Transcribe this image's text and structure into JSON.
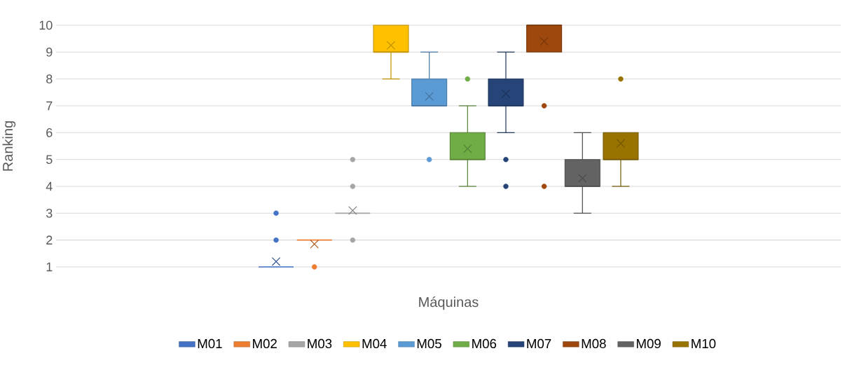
{
  "chart_data": {
    "type": "box",
    "xlabel": "Máquinas",
    "ylabel": "Ranking",
    "categories": [
      null
    ],
    "ylim": [
      1,
      10
    ],
    "yticks": [
      1,
      2,
      3,
      4,
      5,
      6,
      7,
      8,
      9,
      10
    ],
    "grid": "y",
    "legend": "bottom",
    "series": [
      {
        "name": "M01",
        "color": "#4472c4",
        "boxes": [
          {
            "low": 1,
            "q1": 1,
            "median": 1,
            "q3": 1,
            "high": 1,
            "mean": 1.2,
            "outliers": [
              2,
              3
            ]
          }
        ]
      },
      {
        "name": "M02",
        "color": "#ed7d31",
        "boxes": [
          {
            "low": 2,
            "q1": 2,
            "median": 2,
            "q3": 2,
            "high": 2,
            "mean": 1.85,
            "outliers": [
              1
            ]
          }
        ]
      },
      {
        "name": "M03",
        "color": "#a5a5a5",
        "boxes": [
          {
            "low": 3,
            "q1": 3,
            "median": 3,
            "q3": 3,
            "high": 3,
            "mean": 3.1,
            "outliers": [
              2,
              4,
              5
            ]
          }
        ]
      },
      {
        "name": "M04",
        "color": "#ffc000",
        "boxes": [
          {
            "low": 8,
            "q1": 9,
            "median": 9,
            "q3": 10,
            "high": 10,
            "mean": 9.25
          }
        ]
      },
      {
        "name": "M05",
        "color": "#5b9bd5",
        "boxes": [
          {
            "low": 7,
            "q1": 7,
            "median": 7,
            "q3": 8,
            "high": 9,
            "mean": 7.35,
            "outliers": [
              5
            ]
          }
        ]
      },
      {
        "name": "M06",
        "color": "#70ad47",
        "boxes": [
          {
            "low": 4,
            "q1": 5,
            "median": 5,
            "q3": 6,
            "high": 7,
            "mean": 5.4,
            "outliers": [
              8
            ]
          }
        ]
      },
      {
        "name": "M07",
        "color": "#264478",
        "boxes": [
          {
            "low": 6,
            "q1": 7,
            "median": 7,
            "q3": 8,
            "high": 9,
            "mean": 7.45,
            "outliers": [
              5,
              4
            ]
          }
        ]
      },
      {
        "name": "M08",
        "color": "#9e480e",
        "boxes": [
          {
            "low": 9,
            "q1": 9,
            "median": 10,
            "q3": 10,
            "high": 10,
            "mean": 9.4,
            "outliers": [
              7,
              4
            ]
          }
        ]
      },
      {
        "name": "M09",
        "color": "#636363",
        "boxes": [
          {
            "low": 3,
            "q1": 4,
            "median": 4,
            "q3": 5,
            "high": 6,
            "mean": 4.3
          }
        ]
      },
      {
        "name": "M10",
        "color": "#997300",
        "boxes": [
          {
            "low": 4,
            "q1": 5,
            "median": 5,
            "q3": 6,
            "high": 6,
            "mean": 5.6,
            "outliers": [
              8
            ]
          }
        ]
      }
    ]
  }
}
